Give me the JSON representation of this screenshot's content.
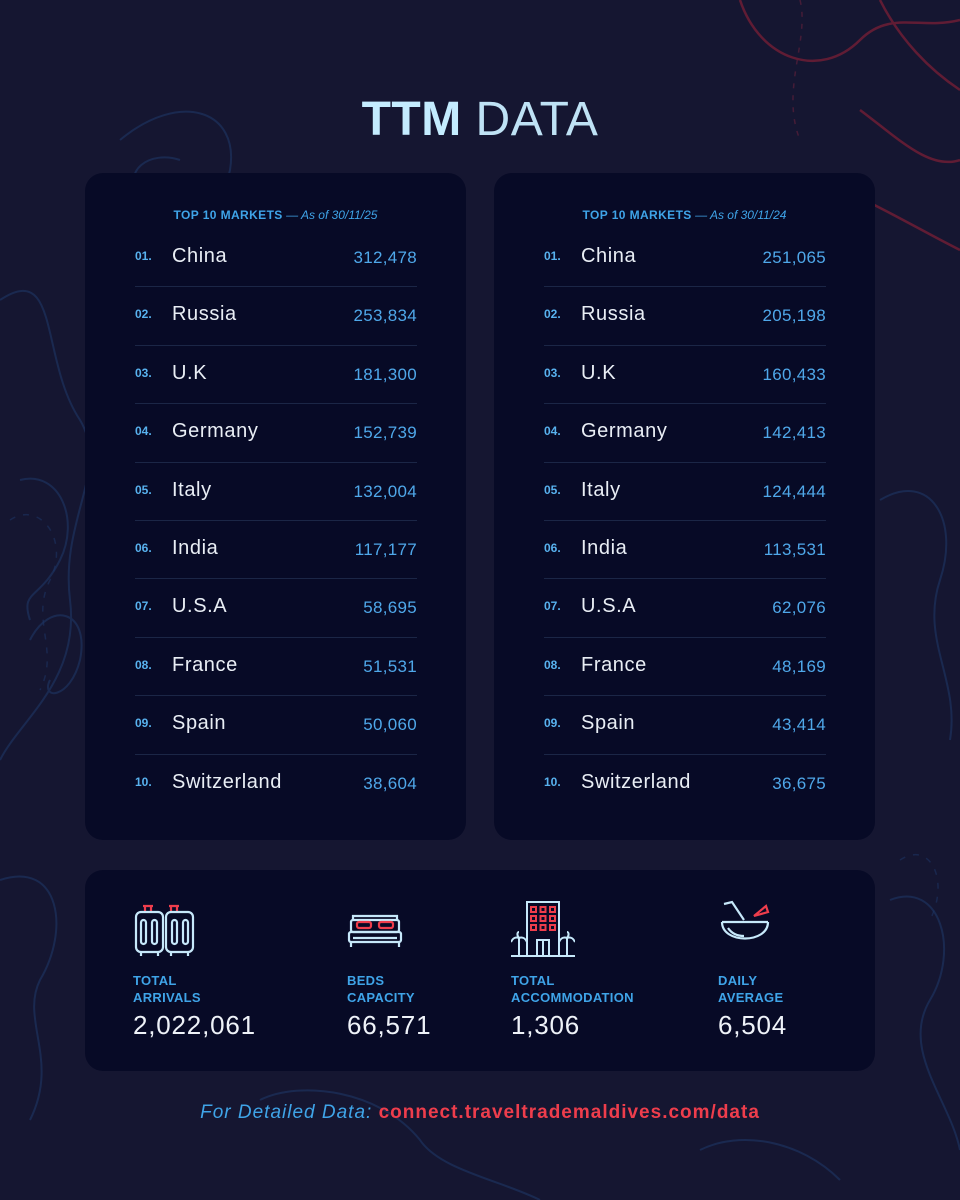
{
  "header": {
    "title_bold": "TTM",
    "title_light": "DATA"
  },
  "colors": {
    "background": "#151631",
    "card": "#070a26",
    "accent_blue": "#3fa4e8",
    "accent_red": "#ee3d4c"
  },
  "tables": [
    {
      "label": "TOP 10 MARKETS",
      "as_of": "— As of 30/11/25",
      "rows": [
        {
          "rank": "01.",
          "country": "China",
          "value": "312,478"
        },
        {
          "rank": "02.",
          "country": "Russia",
          "value": "253,834"
        },
        {
          "rank": "03.",
          "country": "U.K",
          "value": "181,300"
        },
        {
          "rank": "04.",
          "country": "Germany",
          "value": "152,739"
        },
        {
          "rank": "05.",
          "country": "Italy",
          "value": "132,004"
        },
        {
          "rank": "06.",
          "country": "India",
          "value": "117,177"
        },
        {
          "rank": "07.",
          "country": "U.S.A",
          "value": "58,695"
        },
        {
          "rank": "08.",
          "country": "France",
          "value": "51,531"
        },
        {
          "rank": "09.",
          "country": "Spain",
          "value": "50,060"
        },
        {
          "rank": "10.",
          "country": "Switzerland",
          "value": "38,604"
        }
      ]
    },
    {
      "label": "TOP 10 MARKETS",
      "as_of": "— As of 30/11/24",
      "rows": [
        {
          "rank": "01.",
          "country": "China",
          "value": "251,065"
        },
        {
          "rank": "02.",
          "country": "Russia",
          "value": "205,198"
        },
        {
          "rank": "03.",
          "country": "U.K",
          "value": "160,433"
        },
        {
          "rank": "04.",
          "country": "Germany",
          "value": "142,413"
        },
        {
          "rank": "05.",
          "country": "Italy",
          "value": "124,444"
        },
        {
          "rank": "06.",
          "country": "India",
          "value": "113,531"
        },
        {
          "rank": "07.",
          "country": "U.S.A",
          "value": "62,076"
        },
        {
          "rank": "08.",
          "country": "France",
          "value": "48,169"
        },
        {
          "rank": "09.",
          "country": "Spain",
          "value": "43,414"
        },
        {
          "rank": "10.",
          "country": "Switzerland",
          "value": "36,675"
        }
      ]
    }
  ],
  "stats": [
    {
      "icon": "luggage-icon",
      "label_line1": "TOTAL",
      "label_line2": "ARRIVALS",
      "value": "2,022,061"
    },
    {
      "icon": "bed-icon",
      "label_line1": "BEDS",
      "label_line2": "CAPACITY",
      "value": "66,571"
    },
    {
      "icon": "hotel-icon",
      "label_line1": "TOTAL",
      "label_line2": "ACCOMMODATION",
      "value": "1,306"
    },
    {
      "icon": "coconut-drink-icon",
      "label_line1": "DAILY",
      "label_line2": "AVERAGE",
      "value": "6,504"
    }
  ],
  "footer": {
    "lead": "For Detailed Data:",
    "link": "connect.traveltrademaldives.com/data"
  }
}
